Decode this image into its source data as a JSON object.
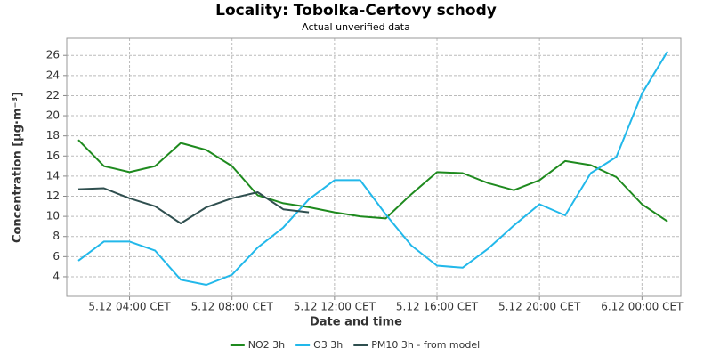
{
  "chart_data": {
    "type": "line",
    "title": "Locality: Tobolka-Certovy schody",
    "subtitle": "Actual unverified data",
    "x_label": "Date and time",
    "y_label": "Concentration [µg·m⁻³]",
    "x": [
      "5.12 02:00",
      "5.12 03:00",
      "5.12 04:00",
      "5.12 05:00",
      "5.12 06:00",
      "5.12 07:00",
      "5.12 08:00",
      "5.12 09:00",
      "5.12 10:00",
      "5.12 11:00",
      "5.12 12:00",
      "5.12 13:00",
      "5.12 14:00",
      "5.12 15:00",
      "5.12 16:00",
      "5.12 17:00",
      "5.12 18:00",
      "5.12 19:00",
      "5.12 20:00",
      "5.12 21:00",
      "5.12 22:00",
      "5.12 23:00",
      "6.12 00:00",
      "6.12 01:00"
    ],
    "xlim": [
      "5.12 01:33",
      "6.12 01:31"
    ],
    "xticks": [
      {
        "value": "5.12 04:00",
        "label": "5.12 04:00 CET"
      },
      {
        "value": "5.12 08:00",
        "label": "5.12 08:00 CET"
      },
      {
        "value": "5.12 12:00",
        "label": "5.12 12:00 CET"
      },
      {
        "value": "5.12 16:00",
        "label": "5.12 16:00 CET"
      },
      {
        "value": "5.12 20:00",
        "label": "5.12 20:00 CET"
      },
      {
        "value": "6.12 00:00",
        "label": "6.12 00:00 CET"
      }
    ],
    "ylim": [
      2.05,
      27.7
    ],
    "yticks": [
      4,
      6,
      8,
      10,
      12,
      14,
      16,
      18,
      20,
      22,
      24,
      26
    ],
    "grid": true,
    "legend": "bottom",
    "series": [
      {
        "name": "NO2 3h",
        "color": "#1e8a1e",
        "values": [
          17.6,
          15.0,
          14.4,
          15.0,
          17.3,
          16.6,
          15.0,
          12.1,
          11.3,
          10.9,
          10.4,
          10.0,
          9.8,
          12.2,
          14.4,
          14.3,
          13.3,
          12.6,
          13.6,
          15.5,
          15.1,
          13.9,
          11.2,
          9.5
        ]
      },
      {
        "name": "O3 3h",
        "color": "#22b8ea",
        "values": [
          5.6,
          7.5,
          7.5,
          6.6,
          3.7,
          3.2,
          4.2,
          6.9,
          8.9,
          11.7,
          13.6,
          13.6,
          10.2,
          7.1,
          5.1,
          4.9,
          6.8,
          9.1,
          11.2,
          10.1,
          14.3,
          15.9,
          22.2,
          26.4
        ]
      },
      {
        "name": "PM10 3h - from model",
        "color": "#2f4f4f",
        "values": [
          12.7,
          12.8,
          11.8,
          11.0,
          9.3,
          10.9,
          11.8,
          12.4,
          10.7,
          10.4,
          null,
          null,
          null,
          null,
          null,
          null,
          null,
          null,
          null,
          null,
          null,
          null,
          null,
          null
        ]
      }
    ]
  }
}
